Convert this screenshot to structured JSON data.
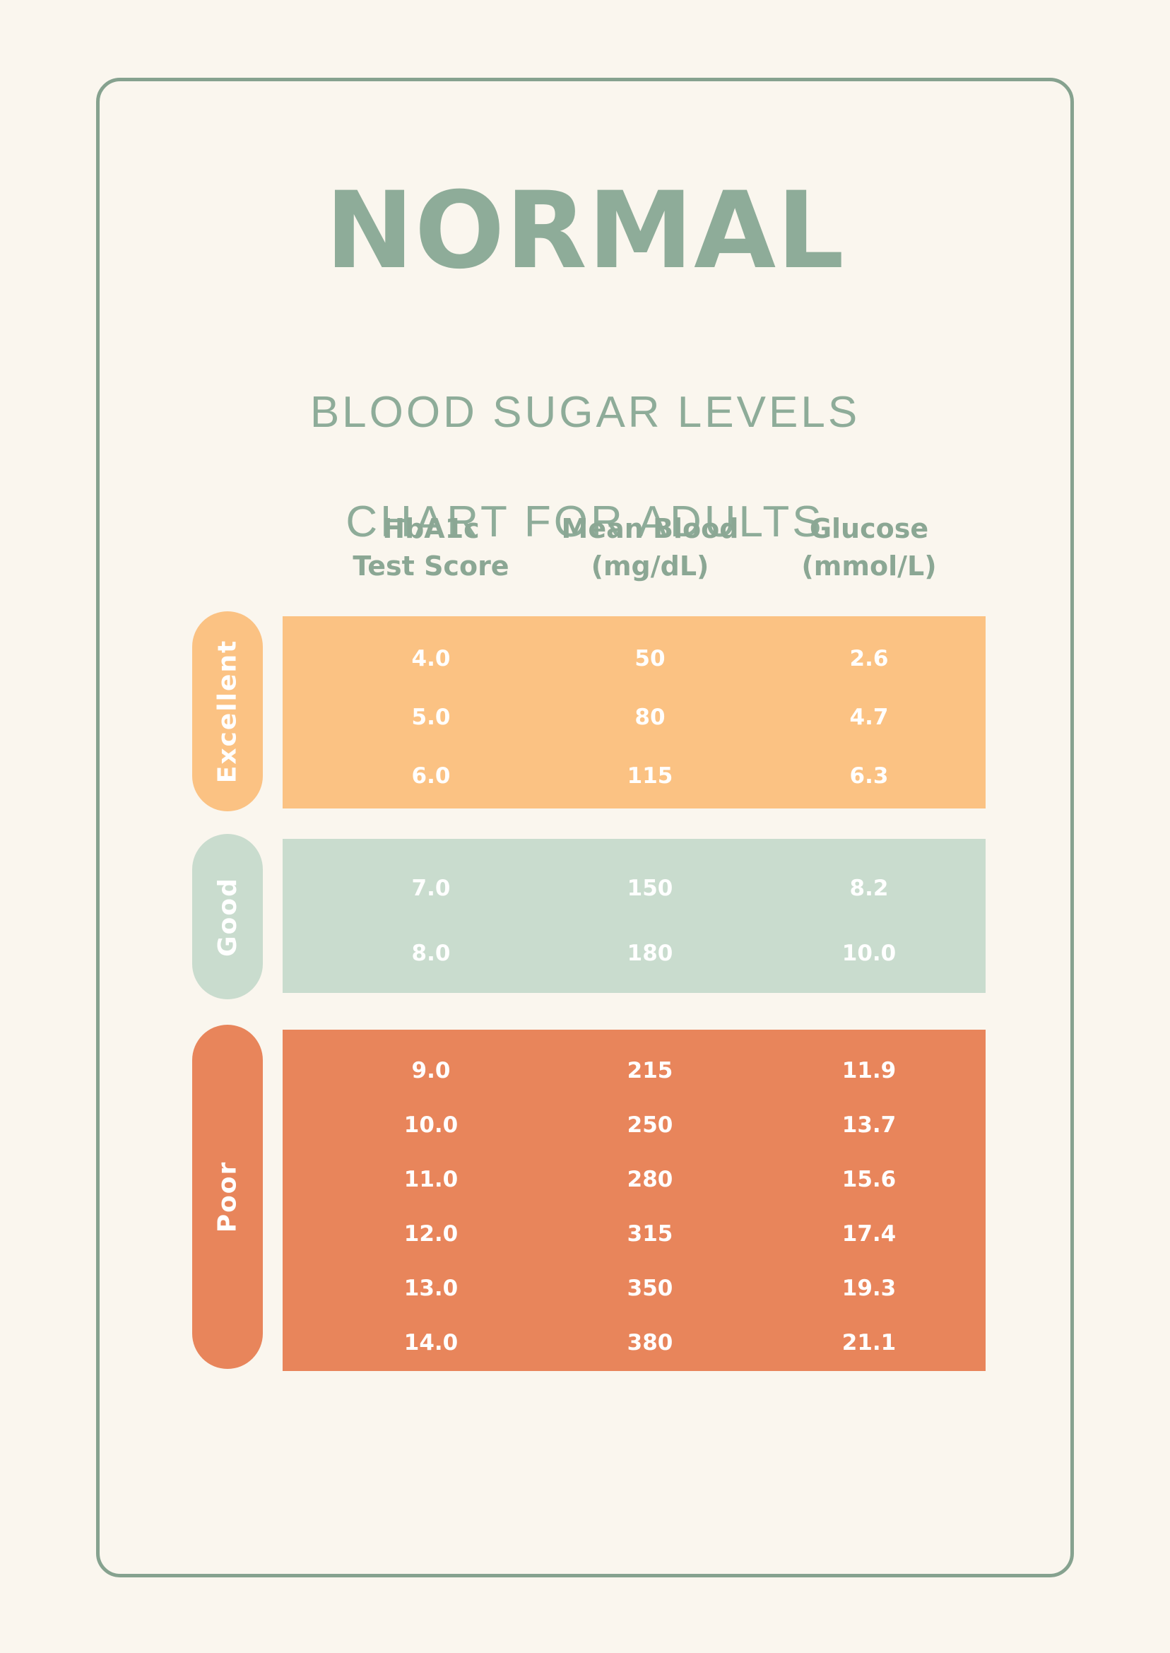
{
  "page": {
    "title": "NORMAL",
    "subtitle_line1": "BLOOD SUGAR LEVELS",
    "subtitle_line2": "CHART FOR ADULTS"
  },
  "colors": {
    "background": "#FAF6EE",
    "frame_border": "#86A28F",
    "title_text": "#8EAC99",
    "header_text": "#8BA794",
    "excellent": "#FBC283",
    "good": "#C9DCCE",
    "poor": "#E8855B",
    "row_text": "#FFFFFF"
  },
  "table": {
    "columns": [
      {
        "line1": "HbA1c",
        "line2": "Test Score"
      },
      {
        "line1": "Mean Blood",
        "line2": "(mg/dL)"
      },
      {
        "line1": "Glucose",
        "line2": "(mmol/L)"
      }
    ],
    "sections": [
      {
        "label": "Excellent",
        "rows": [
          [
            "4.0",
            "50",
            "2.6"
          ],
          [
            "5.0",
            "80",
            "4.7"
          ],
          [
            "6.0",
            "115",
            "6.3"
          ]
        ]
      },
      {
        "label": "Good",
        "rows": [
          [
            "7.0",
            "150",
            "8.2"
          ],
          [
            "8.0",
            "180",
            "10.0"
          ]
        ]
      },
      {
        "label": "Poor",
        "rows": [
          [
            "9.0",
            "215",
            "11.9"
          ],
          [
            "10.0",
            "250",
            "13.7"
          ],
          [
            "11.0",
            "280",
            "15.6"
          ],
          [
            "12.0",
            "315",
            "17.4"
          ],
          [
            "13.0",
            "350",
            "19.3"
          ],
          [
            "14.0",
            "380",
            "21.1"
          ]
        ]
      }
    ]
  },
  "chart_data": {
    "type": "table",
    "title": "NORMAL BLOOD SUGAR LEVELS CHART FOR ADULTS",
    "columns": [
      "HbA1c Test Score",
      "Mean Blood (mg/dL)",
      "Glucose (mmol/L)"
    ],
    "groups": [
      {
        "category": "Excellent",
        "rows": [
          [
            4.0,
            50,
            2.6
          ],
          [
            5.0,
            80,
            4.7
          ],
          [
            6.0,
            115,
            6.3
          ]
        ]
      },
      {
        "category": "Good",
        "rows": [
          [
            7.0,
            150,
            8.2
          ],
          [
            8.0,
            180,
            10.0
          ]
        ]
      },
      {
        "category": "Poor",
        "rows": [
          [
            9.0,
            215,
            11.9
          ],
          [
            10.0,
            250,
            13.7
          ],
          [
            11.0,
            280,
            15.6
          ],
          [
            12.0,
            315,
            17.4
          ],
          [
            13.0,
            350,
            19.3
          ],
          [
            14.0,
            380,
            21.1
          ]
        ]
      }
    ]
  }
}
